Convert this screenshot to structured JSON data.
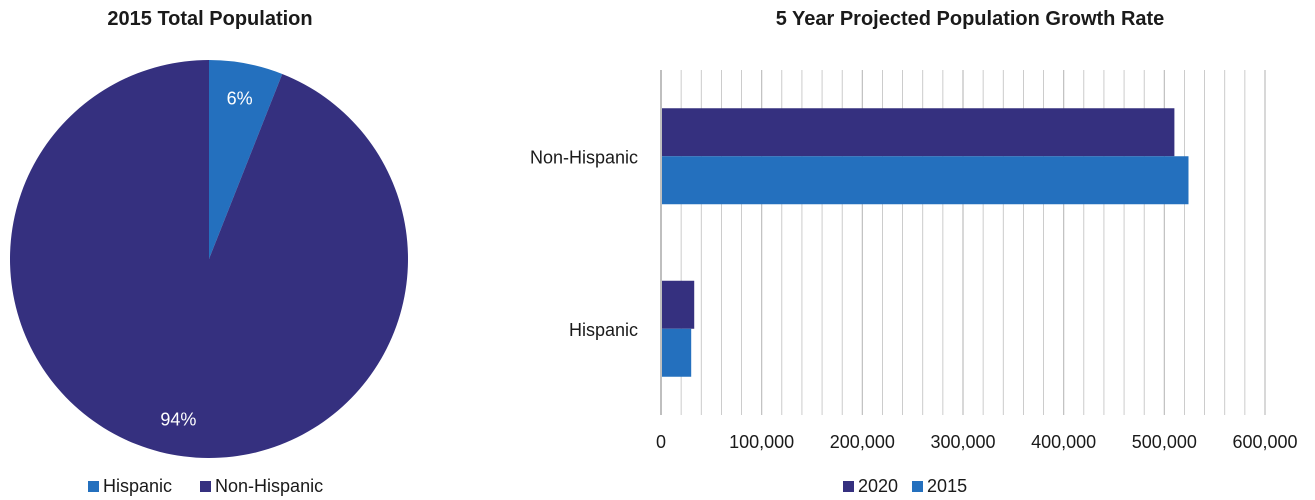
{
  "colors": {
    "hispanic": "#2470be",
    "non_hispanic": "#35307f",
    "y2020": "#35307f",
    "y2015": "#2470be",
    "grid": "#bfbfbf",
    "axis": "#8c8c8c"
  },
  "chart_data": [
    {
      "type": "pie",
      "title": "2015 Total Population",
      "slices": [
        {
          "label": "Hispanic",
          "value": 6,
          "display": "6%",
          "color": "#2470be"
        },
        {
          "label": "Non-Hispanic",
          "value": 94,
          "display": "94%",
          "color": "#35307f"
        }
      ],
      "legend": [
        "Hispanic",
        "Non-Hispanic"
      ],
      "legend_position": "bottom"
    },
    {
      "type": "bar",
      "orientation": "horizontal",
      "title": "5 Year Projected Population Growth Rate",
      "categories": [
        "Non-Hispanic",
        "Hispanic"
      ],
      "series": [
        {
          "name": "2020",
          "values": [
            510000,
            33000
          ],
          "color": "#35307f"
        },
        {
          "name": "2015",
          "values": [
            524000,
            30000
          ],
          "color": "#2470be"
        }
      ],
      "xlim": [
        0,
        600000
      ],
      "x_ticks": [
        "0",
        "100,000",
        "200,000",
        "300,000",
        "400,000",
        "500,000",
        "600,000"
      ],
      "grid": true,
      "legend_position": "bottom"
    }
  ]
}
